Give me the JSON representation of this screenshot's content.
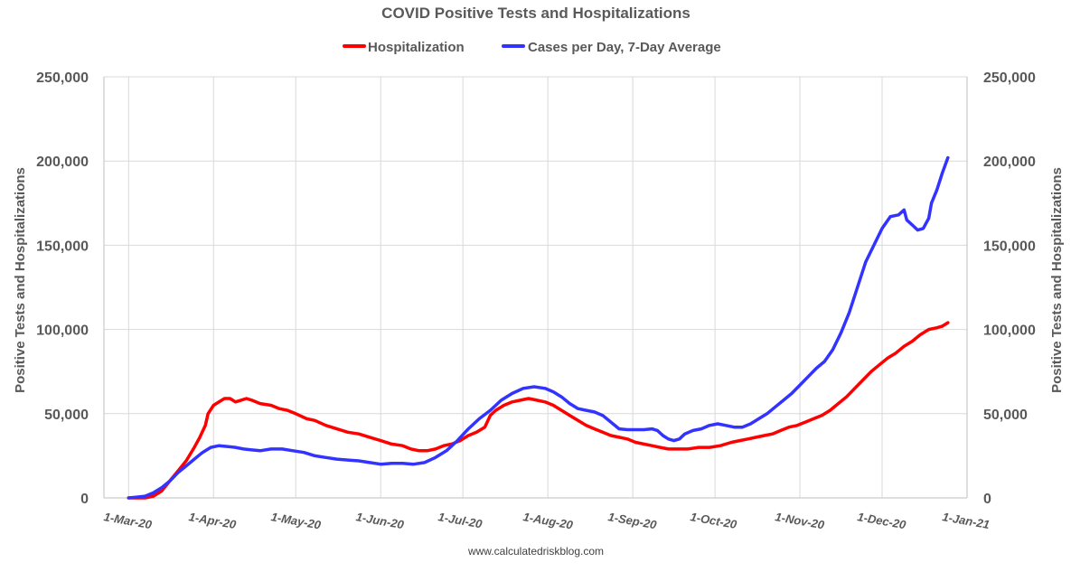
{
  "chart_data": {
    "type": "line",
    "title": "COVID Positive Tests and Hospitalizations",
    "ylabel_left": "Positive Tests and Hospitalizations",
    "ylabel_right": "Positive Tests and Hospitalizations",
    "source": "www.calculatedriskblog.com",
    "ylim": [
      0,
      250000
    ],
    "y_ticks": [
      0,
      50000,
      100000,
      150000,
      200000,
      250000
    ],
    "y_tick_labels": [
      "0",
      "50,000",
      "100,000",
      "150,000",
      "200,000",
      "250,000"
    ],
    "x_ticks": [
      0,
      31,
      61,
      92,
      122,
      153,
      184,
      214,
      245,
      275,
      306
    ],
    "x_tick_labels": [
      "1-Mar-20",
      "1-Apr-20",
      "1-May-20",
      "1-Jun-20",
      "1-Jul-20",
      "1-Aug-20",
      "1-Sep-20",
      "1-Oct-20",
      "1-Nov-20",
      "1-Dec-20",
      "1-Jan-21"
    ],
    "xlim": [
      -9,
      306
    ],
    "legend_position": "top-center",
    "series": [
      {
        "name": "Hospitalization",
        "color": "#ff0000",
        "points": [
          [
            0,
            0
          ],
          [
            3,
            0
          ],
          [
            6,
            0
          ],
          [
            9,
            1000
          ],
          [
            12,
            4000
          ],
          [
            15,
            10000
          ],
          [
            18,
            16000
          ],
          [
            21,
            22000
          ],
          [
            24,
            30000
          ],
          [
            26,
            36000
          ],
          [
            28,
            43000
          ],
          [
            29,
            50000
          ],
          [
            31,
            55000
          ],
          [
            33,
            57000
          ],
          [
            35,
            59000
          ],
          [
            37,
            59000
          ],
          [
            39,
            57000
          ],
          [
            41,
            58000
          ],
          [
            43,
            59000
          ],
          [
            45,
            58000
          ],
          [
            48,
            56000
          ],
          [
            52,
            55000
          ],
          [
            55,
            53000
          ],
          [
            58,
            52000
          ],
          [
            61,
            50000
          ],
          [
            65,
            47000
          ],
          [
            68,
            46000
          ],
          [
            72,
            43000
          ],
          [
            76,
            41000
          ],
          [
            80,
            39000
          ],
          [
            84,
            38000
          ],
          [
            88,
            36000
          ],
          [
            92,
            34000
          ],
          [
            96,
            32000
          ],
          [
            100,
            31000
          ],
          [
            103,
            29000
          ],
          [
            106,
            28000
          ],
          [
            109,
            28000
          ],
          [
            112,
            29000
          ],
          [
            115,
            31000
          ],
          [
            118,
            32000
          ],
          [
            121,
            34000
          ],
          [
            124,
            37000
          ],
          [
            127,
            39000
          ],
          [
            130,
            42000
          ],
          [
            132,
            49000
          ],
          [
            134,
            52000
          ],
          [
            137,
            55000
          ],
          [
            140,
            57000
          ],
          [
            143,
            58000
          ],
          [
            146,
            59000
          ],
          [
            149,
            58000
          ],
          [
            152,
            57000
          ],
          [
            155,
            55000
          ],
          [
            158,
            52000
          ],
          [
            161,
            49000
          ],
          [
            164,
            46000
          ],
          [
            167,
            43000
          ],
          [
            170,
            41000
          ],
          [
            173,
            39000
          ],
          [
            176,
            37000
          ],
          [
            179,
            36000
          ],
          [
            182,
            35000
          ],
          [
            185,
            33000
          ],
          [
            188,
            32000
          ],
          [
            191,
            31000
          ],
          [
            194,
            30000
          ],
          [
            197,
            29000
          ],
          [
            200,
            29000
          ],
          [
            204,
            29000
          ],
          [
            208,
            30000
          ],
          [
            212,
            30000
          ],
          [
            216,
            31000
          ],
          [
            220,
            33000
          ],
          [
            223,
            34000
          ],
          [
            226,
            35000
          ],
          [
            229,
            36000
          ],
          [
            232,
            37000
          ],
          [
            235,
            38000
          ],
          [
            238,
            40000
          ],
          [
            241,
            42000
          ],
          [
            244,
            43000
          ],
          [
            247,
            45000
          ],
          [
            250,
            47000
          ],
          [
            253,
            49000
          ],
          [
            256,
            52000
          ],
          [
            259,
            56000
          ],
          [
            262,
            60000
          ],
          [
            265,
            65000
          ],
          [
            268,
            70000
          ],
          [
            271,
            75000
          ],
          [
            274,
            79000
          ],
          [
            277,
            83000
          ],
          [
            280,
            86000
          ],
          [
            283,
            90000
          ],
          [
            286,
            93000
          ],
          [
            289,
            97000
          ],
          [
            292,
            100000
          ],
          [
            295,
            101000
          ],
          [
            297,
            102000
          ],
          [
            299,
            104000
          ]
        ]
      },
      {
        "name": "Cases per Day, 7-Day Average",
        "color": "#3333ff",
        "points": [
          [
            0,
            0
          ],
          [
            3,
            500
          ],
          [
            6,
            1000
          ],
          [
            9,
            3000
          ],
          [
            12,
            6000
          ],
          [
            15,
            10000
          ],
          [
            18,
            15000
          ],
          [
            21,
            19000
          ],
          [
            24,
            23000
          ],
          [
            27,
            27000
          ],
          [
            30,
            30000
          ],
          [
            33,
            31000
          ],
          [
            36,
            30500
          ],
          [
            39,
            30000
          ],
          [
            42,
            29000
          ],
          [
            45,
            28500
          ],
          [
            48,
            28000
          ],
          [
            52,
            29000
          ],
          [
            56,
            29000
          ],
          [
            60,
            28000
          ],
          [
            64,
            27000
          ],
          [
            68,
            25000
          ],
          [
            72,
            24000
          ],
          [
            76,
            23000
          ],
          [
            80,
            22500
          ],
          [
            84,
            22000
          ],
          [
            88,
            21000
          ],
          [
            92,
            20000
          ],
          [
            96,
            20500
          ],
          [
            100,
            20500
          ],
          [
            104,
            20000
          ],
          [
            108,
            21000
          ],
          [
            112,
            24000
          ],
          [
            116,
            28000
          ],
          [
            120,
            34000
          ],
          [
            124,
            41000
          ],
          [
            128,
            47000
          ],
          [
            132,
            52000
          ],
          [
            136,
            58000
          ],
          [
            140,
            62000
          ],
          [
            144,
            65000
          ],
          [
            148,
            66000
          ],
          [
            152,
            65000
          ],
          [
            155,
            63000
          ],
          [
            158,
            60000
          ],
          [
            161,
            56000
          ],
          [
            164,
            53000
          ],
          [
            167,
            52000
          ],
          [
            170,
            51000
          ],
          [
            173,
            49000
          ],
          [
            176,
            45000
          ],
          [
            179,
            41000
          ],
          [
            182,
            40500
          ],
          [
            185,
            40500
          ],
          [
            188,
            40500
          ],
          [
            191,
            41000
          ],
          [
            193,
            40000
          ],
          [
            195,
            37000
          ],
          [
            197,
            35000
          ],
          [
            199,
            34000
          ],
          [
            201,
            35000
          ],
          [
            203,
            38000
          ],
          [
            206,
            40000
          ],
          [
            209,
            41000
          ],
          [
            212,
            43000
          ],
          [
            215,
            44000
          ],
          [
            218,
            43000
          ],
          [
            221,
            42000
          ],
          [
            224,
            42000
          ],
          [
            227,
            44000
          ],
          [
            230,
            47000
          ],
          [
            233,
            50000
          ],
          [
            236,
            54000
          ],
          [
            239,
            58000
          ],
          [
            242,
            62000
          ],
          [
            245,
            67000
          ],
          [
            248,
            72000
          ],
          [
            251,
            77000
          ],
          [
            254,
            81000
          ],
          [
            257,
            88000
          ],
          [
            260,
            98000
          ],
          [
            263,
            110000
          ],
          [
            266,
            125000
          ],
          [
            269,
            140000
          ],
          [
            272,
            150000
          ],
          [
            275,
            160000
          ],
          [
            278,
            167000
          ],
          [
            281,
            168000
          ],
          [
            283,
            171000
          ],
          [
            284,
            165000
          ],
          [
            286,
            162000
          ],
          [
            288,
            159000
          ],
          [
            290,
            160000
          ],
          [
            292,
            166000
          ],
          [
            293,
            175000
          ],
          [
            295,
            183000
          ],
          [
            297,
            193000
          ],
          [
            299,
            202000
          ]
        ]
      }
    ]
  }
}
